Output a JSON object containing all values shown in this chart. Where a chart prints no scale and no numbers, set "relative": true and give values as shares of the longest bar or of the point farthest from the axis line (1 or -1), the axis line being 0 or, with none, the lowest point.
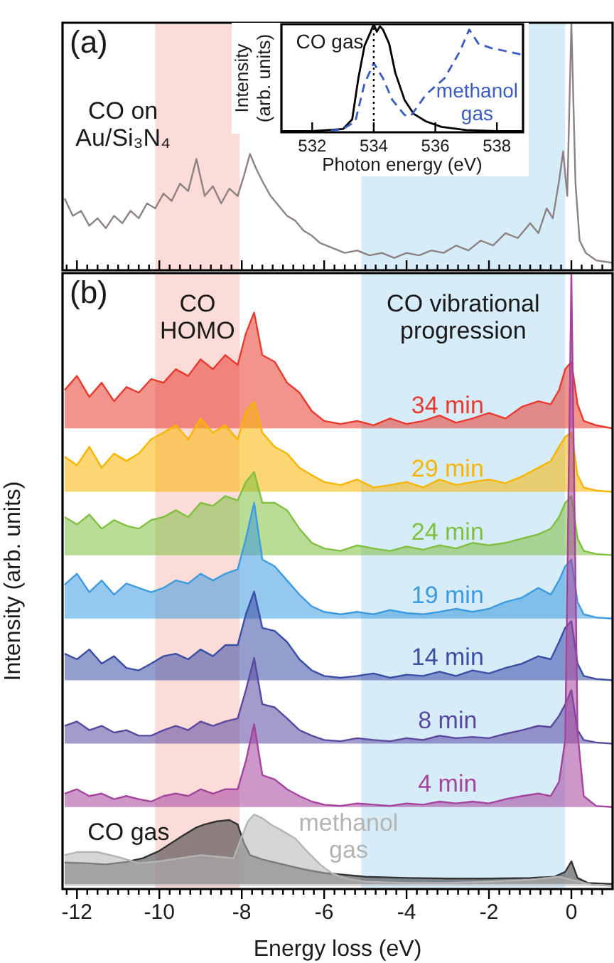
{
  "chart_data": [
    {
      "type": "line",
      "relative": true,
      "marker": "none",
      "tick_labels": false,
      "annotations": [
        "(a)"
      ],
      "xlim": [
        -12.35,
        1.0
      ],
      "xticks": [
        {
          "value": -12.25,
          "label": null
        },
        -12,
        {
          "value": -11.75,
          "label": null
        },
        {
          "value": -11.5,
          "label": null
        },
        {
          "value": -11.25,
          "label": null
        },
        {
          "value": -11,
          "label": null
        },
        {
          "value": -10.75,
          "label": null
        },
        {
          "value": -10.5,
          "label": null
        },
        {
          "value": -10.25,
          "label": null
        },
        -10,
        {
          "value": -9.75,
          "label": null
        },
        {
          "value": -9.5,
          "label": null
        },
        {
          "value": -9.25,
          "label": null
        },
        {
          "value": -9,
          "label": null
        },
        {
          "value": -8.75,
          "label": null
        },
        {
          "value": -8.5,
          "label": null
        },
        {
          "value": -8.25,
          "label": null
        },
        -8,
        {
          "value": -7.75,
          "label": null
        },
        {
          "value": -7.5,
          "label": null
        },
        {
          "value": -7.25,
          "label": null
        },
        {
          "value": -7,
          "label": null
        },
        {
          "value": -6.75,
          "label": null
        },
        {
          "value": -6.5,
          "label": null
        },
        {
          "value": -6.25,
          "label": null
        },
        -6,
        {
          "value": -5.75,
          "label": null
        },
        {
          "value": -5.5,
          "label": null
        },
        {
          "value": -5.25,
          "label": null
        },
        {
          "value": -5,
          "label": null
        },
        {
          "value": -4.75,
          "label": null
        },
        {
          "value": -4.5,
          "label": null
        },
        {
          "value": -4.25,
          "label": null
        },
        -4,
        {
          "value": -3.75,
          "label": null
        },
        {
          "value": -3.5,
          "label": null
        },
        {
          "value": -3.25,
          "label": null
        },
        {
          "value": -3,
          "label": null
        },
        {
          "value": -2.75,
          "label": null
        },
        {
          "value": -2.5,
          "label": null
        },
        {
          "value": -2.25,
          "label": null
        },
        -2,
        {
          "value": -1.75,
          "label": null
        },
        {
          "value": -1.5,
          "label": null
        },
        {
          "value": -1.25,
          "label": null
        },
        {
          "value": -1,
          "label": null
        },
        {
          "value": -0.75,
          "label": null
        },
        {
          "value": -0.5,
          "label": null
        },
        {
          "value": -0.25,
          "label": null
        },
        0,
        {
          "value": 0.25,
          "label": null
        },
        {
          "value": 0.5,
          "label": null
        },
        {
          "value": 0.75,
          "label": null
        }
      ],
      "bands": [
        {
          "axis": "x",
          "from": -10.1,
          "to": -8.05,
          "color": "#fbdcd9"
        },
        {
          "axis": "x",
          "from": -5.1,
          "to": -0.15,
          "color": "#d6ecf8"
        }
      ],
      "x": [
        -12.3,
        -12.1,
        -11.9,
        -11.7,
        -11.5,
        -11.3,
        -11.1,
        -10.9,
        -10.7,
        -10.5,
        -10.3,
        -10.1,
        -9.9,
        -9.7,
        -9.5,
        -9.3,
        -9.1,
        -8.9,
        -8.7,
        -8.5,
        -8.3,
        -8.1,
        -7.95,
        -7.8,
        -7.65,
        -7.5,
        -7.3,
        -7.1,
        -6.9,
        -6.7,
        -6.5,
        -6.3,
        -6.1,
        -5.8,
        -5.5,
        -5.2,
        -4.9,
        -4.6,
        -4.3,
        -4.0,
        -3.7,
        -3.4,
        -3.1,
        -2.8,
        -2.5,
        -2.2,
        -1.9,
        -1.6,
        -1.3,
        -1.0,
        -0.8,
        -0.6,
        -0.45,
        -0.3,
        -0.2,
        -0.1,
        0,
        0.1,
        0.2,
        0.35,
        0.6,
        1.0
      ],
      "series": [
        {
          "name": "CO on Au/Si₃N₄",
          "color": "#8c8282",
          "values": [
            0.29,
            0.22,
            0.24,
            0.18,
            0.21,
            0.17,
            0.22,
            0.19,
            0.24,
            0.21,
            0.27,
            0.25,
            0.31,
            0.28,
            0.35,
            0.32,
            0.45,
            0.3,
            0.34,
            0.27,
            0.33,
            0.3,
            0.38,
            0.47,
            0.41,
            0.36,
            0.3,
            0.26,
            0.22,
            0.2,
            0.16,
            0.14,
            0.11,
            0.09,
            0.07,
            0.08,
            0.06,
            0.07,
            0.05,
            0.07,
            0.06,
            0.08,
            0.07,
            0.1,
            0.08,
            0.12,
            0.1,
            0.15,
            0.13,
            0.19,
            0.15,
            0.25,
            0.21,
            0.36,
            0.48,
            0.3,
            1.0,
            0.35,
            0.12,
            0.07,
            0.04,
            0.03
          ]
        }
      ]
    },
    {
      "type": "line",
      "relative": true,
      "marker": "none",
      "tick_labels": "x",
      "xlabel": "Photon energy (eV)",
      "ylabel": "Intensity (arb. units)",
      "xlim": [
        531,
        538.85
      ],
      "xticks": [
        532,
        534,
        536,
        538
      ],
      "ref_lines": [
        {
          "axis": "x",
          "value": 534,
          "color": "#000000",
          "line_style": "dotted"
        }
      ],
      "series": [
        {
          "name": "CO gas",
          "color": "#000000",
          "line_style": "solid",
          "x": [
            531,
            532,
            533,
            533.3,
            533.5,
            533.7,
            533.9,
            534.0,
            534.1,
            534.2,
            534.3,
            534.5,
            534.7,
            535.0,
            535.3,
            535.7,
            536.2,
            537,
            538,
            538.85
          ],
          "values": [
            0.01,
            0.01,
            0.03,
            0.12,
            0.5,
            0.8,
            0.93,
            1.0,
            0.93,
            0.98,
            0.95,
            0.82,
            0.55,
            0.3,
            0.17,
            0.1,
            0.05,
            0.02,
            0.01,
            0.01
          ]
        },
        {
          "name": "methanol gas",
          "color": "#3a5cc0",
          "line_style": "dashed",
          "x": [
            532.6,
            533,
            533.4,
            533.7,
            534.0,
            534.3,
            534.6,
            535.0,
            535.2,
            535.7,
            536.3,
            536.8,
            537.1,
            537.4,
            537.8,
            538.3,
            538.8
          ],
          "values": [
            0.015,
            0.03,
            0.1,
            0.45,
            0.64,
            0.5,
            0.3,
            0.16,
            0.15,
            0.35,
            0.5,
            0.75,
            0.95,
            0.82,
            0.78,
            0.75,
            0.72
          ]
        }
      ]
    },
    {
      "type": "area",
      "relative": true,
      "marker": "none",
      "annotations": [
        "(b)"
      ],
      "xlabel": "Energy loss (eV)",
      "ylabel": "Intensity (arb. units)",
      "xlim": [
        -12.35,
        1.0
      ],
      "xticks": [
        {
          "value": -12.25,
          "label": null
        },
        -12,
        {
          "value": -11.75,
          "label": null
        },
        {
          "value": -11.5,
          "label": null
        },
        {
          "value": -11.25,
          "label": null
        },
        {
          "value": -11,
          "label": null
        },
        {
          "value": -10.75,
          "label": null
        },
        {
          "value": -10.5,
          "label": null
        },
        {
          "value": -10.25,
          "label": null
        },
        -10,
        {
          "value": -9.75,
          "label": null
        },
        {
          "value": -9.5,
          "label": null
        },
        {
          "value": -9.25,
          "label": null
        },
        {
          "value": -9,
          "label": null
        },
        {
          "value": -8.75,
          "label": null
        },
        {
          "value": -8.5,
          "label": null
        },
        {
          "value": -8.25,
          "label": null
        },
        -8,
        {
          "value": -7.75,
          "label": null
        },
        {
          "value": -7.5,
          "label": null
        },
        {
          "value": -7.25,
          "label": null
        },
        {
          "value": -7,
          "label": null
        },
        {
          "value": -6.75,
          "label": null
        },
        {
          "value": -6.5,
          "label": null
        },
        {
          "value": -6.25,
          "label": null
        },
        -6,
        {
          "value": -5.75,
          "label": null
        },
        {
          "value": -5.5,
          "label": null
        },
        {
          "value": -5.25,
          "label": null
        },
        {
          "value": -5,
          "label": null
        },
        {
          "value": -4.75,
          "label": null
        },
        {
          "value": -4.5,
          "label": null
        },
        {
          "value": -4.25,
          "label": null
        },
        -4,
        {
          "value": -3.75,
          "label": null
        },
        {
          "value": -3.5,
          "label": null
        },
        {
          "value": -3.25,
          "label": null
        },
        {
          "value": -3,
          "label": null
        },
        {
          "value": -2.75,
          "label": null
        },
        {
          "value": -2.5,
          "label": null
        },
        {
          "value": -2.25,
          "label": null
        },
        -2,
        {
          "value": -1.75,
          "label": null
        },
        {
          "value": -1.5,
          "label": null
        },
        {
          "value": -1.25,
          "label": null
        },
        {
          "value": -1,
          "label": null
        },
        {
          "value": -0.75,
          "label": null
        },
        {
          "value": -0.5,
          "label": null
        },
        {
          "value": -0.25,
          "label": null
        },
        0,
        {
          "value": 0.25,
          "label": null
        },
        {
          "value": 0.5,
          "label": null
        },
        {
          "value": 0.75,
          "label": null
        }
      ],
      "bands": [
        {
          "axis": "x",
          "from": -10.1,
          "to": -8.05,
          "color": "#fbdcd9",
          "label": "CO HOMO"
        },
        {
          "axis": "x",
          "from": -5.1,
          "to": -0.15,
          "color": "#d6ecf8",
          "label": "CO vibrational progression"
        }
      ],
      "x": [
        -12.3,
        -12.0,
        -11.7,
        -11.4,
        -11.1,
        -10.8,
        -10.5,
        -10.2,
        -9.9,
        -9.6,
        -9.3,
        -9.0,
        -8.7,
        -8.4,
        -8.1,
        -7.9,
        -7.7,
        -7.5,
        -7.2,
        -6.9,
        -6.6,
        -6.3,
        -6.0,
        -5.6,
        -5.2,
        -4.8,
        -4.4,
        -4.0,
        -3.6,
        -3.2,
        -2.8,
        -2.4,
        -2.0,
        -1.6,
        -1.2,
        -0.8,
        -0.5,
        -0.3,
        -0.15,
        0,
        0.15,
        0.3,
        0.6,
        1.0
      ],
      "series": [
        {
          "name": "34 min",
          "color": "#e83a2e",
          "values": [
            0.81,
            0.833,
            0.799,
            0.822,
            0.792,
            0.815,
            0.806,
            0.828,
            0.822,
            0.844,
            0.833,
            0.86,
            0.844,
            0.867,
            0.851,
            0.902,
            0.936,
            0.867,
            0.856,
            0.822,
            0.806,
            0.776,
            0.76,
            0.755,
            0.76,
            0.753,
            0.764,
            0.755,
            0.76,
            0.769,
            0.757,
            0.764,
            0.773,
            0.764,
            0.783,
            0.792,
            0.787,
            0.81,
            0.844,
            0.856,
            0.787,
            0.76,
            0.753,
            0.748
          ]
        },
        {
          "name": "29 min",
          "color": "#f7b500",
          "values": [
            0.702,
            0.688,
            0.718,
            0.684,
            0.707,
            0.695,
            0.707,
            0.73,
            0.741,
            0.753,
            0.73,
            0.764,
            0.741,
            0.753,
            0.73,
            0.775,
            0.791,
            0.741,
            0.718,
            0.707,
            0.684,
            0.672,
            0.661,
            0.656,
            0.665,
            0.652,
            0.656,
            0.661,
            0.652,
            0.665,
            0.656,
            0.661,
            0.665,
            0.659,
            0.67,
            0.684,
            0.695,
            0.718,
            0.734,
            0.741,
            0.672,
            0.652,
            0.647,
            0.645
          ]
        },
        {
          "name": "24 min",
          "color": "#80c040",
          "values": [
            0.604,
            0.592,
            0.608,
            0.585,
            0.599,
            0.59,
            0.585,
            0.599,
            0.604,
            0.615,
            0.604,
            0.627,
            0.622,
            0.638,
            0.631,
            0.661,
            0.677,
            0.627,
            0.627,
            0.615,
            0.585,
            0.562,
            0.553,
            0.549,
            0.558,
            0.553,
            0.549,
            0.556,
            0.551,
            0.558,
            0.553,
            0.562,
            0.558,
            0.562,
            0.569,
            0.576,
            0.585,
            0.604,
            0.627,
            0.638,
            0.569,
            0.549,
            0.544,
            0.542
          ]
        },
        {
          "name": "19 min",
          "color": "#3d9be0",
          "values": [
            0.494,
            0.512,
            0.482,
            0.501,
            0.478,
            0.496,
            0.489,
            0.482,
            0.489,
            0.501,
            0.496,
            0.512,
            0.501,
            0.512,
            0.519,
            0.569,
            0.627,
            0.535,
            0.524,
            0.501,
            0.478,
            0.459,
            0.45,
            0.446,
            0.45,
            0.446,
            0.453,
            0.448,
            0.446,
            0.45,
            0.455,
            0.45,
            0.455,
            0.466,
            0.473,
            0.489,
            0.478,
            0.501,
            0.524,
            0.535,
            0.466,
            0.446,
            0.441,
            0.439
          ]
        },
        {
          "name": "14 min",
          "color": "#3a4ea5",
          "values": [
            0.382,
            0.373,
            0.389,
            0.366,
            0.378,
            0.359,
            0.355,
            0.366,
            0.378,
            0.382,
            0.373,
            0.389,
            0.378,
            0.396,
            0.396,
            0.446,
            0.483,
            0.424,
            0.419,
            0.401,
            0.373,
            0.355,
            0.346,
            0.343,
            0.346,
            0.35,
            0.343,
            0.348,
            0.346,
            0.353,
            0.346,
            0.355,
            0.35,
            0.359,
            0.366,
            0.378,
            0.373,
            0.401,
            0.424,
            0.435,
            0.366,
            0.346,
            0.341,
            0.339
          ]
        },
        {
          "name": "8 min",
          "color": "#5a48a0",
          "values": [
            0.265,
            0.272,
            0.258,
            0.265,
            0.254,
            0.258,
            0.249,
            0.249,
            0.258,
            0.265,
            0.258,
            0.272,
            0.265,
            0.272,
            0.277,
            0.323,
            0.375,
            0.3,
            0.295,
            0.277,
            0.258,
            0.249,
            0.242,
            0.24,
            0.245,
            0.242,
            0.24,
            0.245,
            0.242,
            0.249,
            0.245,
            0.247,
            0.245,
            0.252,
            0.258,
            0.265,
            0.263,
            0.281,
            0.3,
            0.323,
            0.258,
            0.242,
            0.238,
            0.236
          ]
        },
        {
          "name": "4 min",
          "color": "#a4449c",
          "values": [
            0.155,
            0.162,
            0.151,
            0.155,
            0.146,
            0.151,
            0.146,
            0.142,
            0.151,
            0.155,
            0.151,
            0.162,
            0.155,
            0.162,
            0.162,
            0.208,
            0.268,
            0.185,
            0.178,
            0.162,
            0.151,
            0.142,
            0.137,
            0.135,
            0.139,
            0.137,
            0.135,
            0.139,
            0.137,
            0.142,
            0.139,
            0.142,
            0.139,
            0.146,
            0.151,
            0.155,
            0.151,
            0.174,
            0.242,
            1.0,
            0.254,
            0.151,
            0.135,
            0.133
          ]
        },
        {
          "name": "CO gas",
          "color": "#333333",
          "x": [
            -12.3,
            -11.8,
            -11.3,
            -10.8,
            -10.4,
            -10.0,
            -9.7,
            -9.4,
            -9.1,
            -8.9,
            -8.6,
            -8.3,
            -8.1,
            -7.95,
            -7.8,
            -7.5,
            -7.0,
            -6.5,
            -6.0,
            -5.0,
            -4.0,
            -3.0,
            -2.0,
            -1.0,
            -0.4,
            -0.15,
            0,
            0.15,
            0.4,
            1.0
          ],
          "values": [
            0.043,
            0.042,
            0.04,
            0.044,
            0.05,
            0.062,
            0.075,
            0.088,
            0.1,
            0.105,
            0.11,
            0.112,
            0.105,
            0.075,
            0.055,
            0.048,
            0.04,
            0.032,
            0.026,
            0.02,
            0.018,
            0.017,
            0.017,
            0.018,
            0.02,
            0.028,
            0.045,
            0.018,
            0.01,
            0.008
          ]
        },
        {
          "name": "methanol gas",
          "color": "#b4b4b4",
          "x": [
            -12.3,
            -12.0,
            -11.5,
            -11.0,
            -10.5,
            -10.0,
            -9.5,
            -9.0,
            -8.5,
            -8.2,
            -8.0,
            -7.85,
            -7.7,
            -7.5,
            -7.3,
            -7.0,
            -6.7,
            -6.4,
            -6.1,
            -5.8,
            -5.4,
            -5.0,
            -4.0,
            -3.0,
            -2.0,
            -1.0,
            -0.3,
            0,
            0.5,
            1.0
          ],
          "values": [
            0.055,
            0.06,
            0.06,
            0.052,
            0.042,
            0.045,
            0.05,
            0.055,
            0.052,
            0.05,
            0.085,
            0.11,
            0.121,
            0.115,
            0.105,
            0.094,
            0.082,
            0.06,
            0.04,
            0.025,
            0.016,
            0.012,
            0.01,
            0.01,
            0.012,
            0.015,
            0.02,
            0.015,
            0.007,
            0.005
          ]
        }
      ]
    }
  ]
}
